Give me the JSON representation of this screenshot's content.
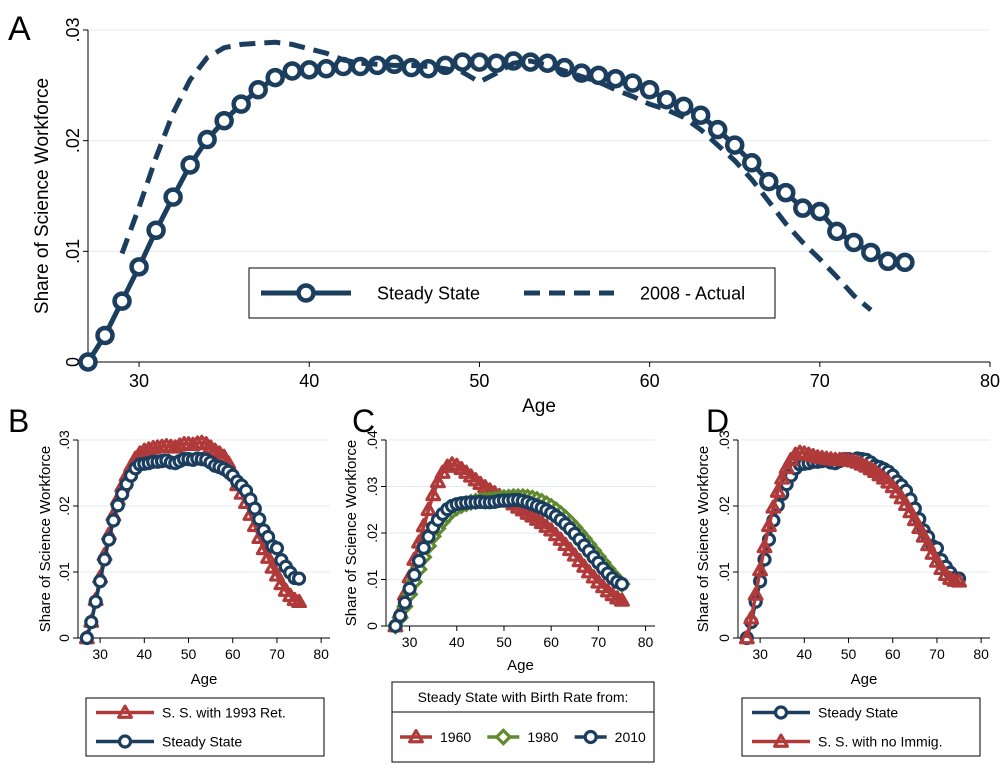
{
  "chart_data": [
    {
      "panel_label": "A",
      "type": "line",
      "xlabel": "Age",
      "ylabel": "Share of Science Workforce",
      "xlim": [
        27,
        80
      ],
      "ylim": [
        0,
        0.03
      ],
      "xticks": [
        "30",
        "40",
        "50",
        "60",
        "70",
        "80"
      ],
      "yticks": [
        "0",
        ".01",
        ".02",
        ".03"
      ],
      "grid": true,
      "legend": "inside-bottom-center",
      "x": [
        27,
        28,
        29,
        30,
        31,
        32,
        33,
        34,
        35,
        36,
        37,
        38,
        39,
        40,
        41,
        42,
        43,
        44,
        45,
        46,
        47,
        48,
        49,
        50,
        51,
        52,
        53,
        54,
        55,
        56,
        57,
        58,
        59,
        60,
        61,
        62,
        63,
        64,
        65,
        66,
        67,
        68,
        69,
        70,
        71,
        72,
        73,
        74,
        75
      ],
      "series": [
        {
          "name": "Steady State",
          "style": "line-circles",
          "color": "#1b3e5e",
          "values": [
            0.0,
            0.0024,
            0.0055,
            0.0086,
            0.0119,
            0.0149,
            0.0178,
            0.0201,
            0.0218,
            0.0233,
            0.0246,
            0.0257,
            0.0263,
            0.0264,
            0.0265,
            0.0267,
            0.0267,
            0.0268,
            0.0269,
            0.0266,
            0.0265,
            0.0268,
            0.0271,
            0.0271,
            0.027,
            0.0272,
            0.0271,
            0.027,
            0.0266,
            0.0261,
            0.0259,
            0.0256,
            0.0252,
            0.0246,
            0.0237,
            0.0231,
            0.0223,
            0.021,
            0.0196,
            0.018,
            0.0163,
            0.0153,
            0.0139,
            0.0136,
            0.0118,
            0.0108,
            0.0099,
            0.0091,
            0.009
          ]
        },
        {
          "name": "2008 - Actual",
          "style": "dashed",
          "color": "#1b3e5e",
          "x": [
            29,
            30,
            31,
            32,
            33,
            34,
            35,
            36,
            37,
            38,
            39,
            40,
            41,
            42,
            43,
            44,
            45,
            46,
            47,
            48,
            49,
            50,
            51,
            52,
            53,
            54,
            55,
            56,
            57,
            58,
            59,
            60,
            61,
            62,
            63,
            64,
            65,
            66,
            67,
            68,
            69,
            70,
            71,
            72,
            73
          ],
          "values": [
            0.0098,
            0.014,
            0.0185,
            0.0225,
            0.0255,
            0.0275,
            0.0284,
            0.0287,
            0.0288,
            0.0289,
            0.0287,
            0.0283,
            0.0279,
            0.0273,
            0.027,
            0.0269,
            0.0268,
            0.0268,
            0.0267,
            0.0265,
            0.0262,
            0.0253,
            0.0261,
            0.027,
            0.0272,
            0.0268,
            0.0263,
            0.0258,
            0.0253,
            0.0246,
            0.024,
            0.0233,
            0.0228,
            0.0221,
            0.021,
            0.0196,
            0.0182,
            0.0165,
            0.0145,
            0.0125,
            0.0108,
            0.0093,
            0.0077,
            0.006,
            0.0047
          ]
        }
      ]
    },
    {
      "panel_label": "B",
      "type": "line",
      "xlabel": "Age",
      "ylabel": "Share of Science Workforce",
      "xlim": [
        25,
        82
      ],
      "ylim": [
        0,
        0.03
      ],
      "xticks": [
        "30",
        "40",
        "50",
        "60",
        "70",
        "80"
      ],
      "yticks": [
        "0",
        ".01",
        ".02",
        ".03"
      ],
      "grid": true,
      "legend": "bottom",
      "x": [
        27,
        28,
        29,
        30,
        31,
        32,
        33,
        34,
        35,
        36,
        37,
        38,
        39,
        40,
        41,
        42,
        43,
        44,
        45,
        46,
        47,
        48,
        49,
        50,
        51,
        52,
        53,
        54,
        55,
        56,
        57,
        58,
        59,
        60,
        61,
        62,
        63,
        64,
        65,
        66,
        67,
        68,
        69,
        70,
        71,
        72,
        73,
        74,
        75
      ],
      "series": [
        {
          "name": "S. S. with 1993 Ret.",
          "style": "line-triangles",
          "color": "#b03a3a",
          "values": [
            0.0,
            0.0025,
            0.0058,
            0.0092,
            0.0126,
            0.0157,
            0.0186,
            0.021,
            0.023,
            0.0246,
            0.026,
            0.0272,
            0.028,
            0.0284,
            0.0286,
            0.0288,
            0.0289,
            0.029,
            0.0291,
            0.029,
            0.0289,
            0.0292,
            0.0294,
            0.0294,
            0.0293,
            0.0295,
            0.0296,
            0.0294,
            0.0289,
            0.0284,
            0.028,
            0.0275,
            0.0265,
            0.025,
            0.0232,
            0.0219,
            0.0205,
            0.0187,
            0.017,
            0.0152,
            0.0135,
            0.0122,
            0.0107,
            0.0095,
            0.0082,
            0.0072,
            0.0064,
            0.0058,
            0.0055
          ]
        },
        {
          "name": "Steady State",
          "style": "line-circles",
          "color": "#1b3e5e",
          "values": [
            0.0,
            0.0024,
            0.0055,
            0.0086,
            0.0119,
            0.0149,
            0.0178,
            0.0201,
            0.0218,
            0.0233,
            0.0246,
            0.0257,
            0.0263,
            0.0264,
            0.0265,
            0.0267,
            0.0267,
            0.0268,
            0.0269,
            0.0266,
            0.0265,
            0.0268,
            0.0271,
            0.0271,
            0.027,
            0.0272,
            0.0271,
            0.027,
            0.0266,
            0.0261,
            0.0259,
            0.0256,
            0.0252,
            0.0246,
            0.0237,
            0.0231,
            0.0223,
            0.021,
            0.0196,
            0.018,
            0.0163,
            0.0153,
            0.0139,
            0.0136,
            0.0118,
            0.0108,
            0.0099,
            0.0091,
            0.009
          ]
        }
      ]
    },
    {
      "panel_label": "C",
      "type": "line",
      "xlabel": "Age",
      "ylabel": "Share of Science Workforce",
      "xlim": [
        25,
        82
      ],
      "ylim": [
        0,
        0.04
      ],
      "xticks": [
        "30",
        "40",
        "50",
        "60",
        "70",
        "80"
      ],
      "yticks": [
        "0",
        ".01",
        ".02",
        ".03",
        ".04"
      ],
      "grid": true,
      "legend": "bottom",
      "legend_title": "Steady State with Birth Rate from:",
      "x": [
        27,
        28,
        29,
        30,
        31,
        32,
        33,
        34,
        35,
        36,
        37,
        38,
        39,
        40,
        41,
        42,
        43,
        44,
        45,
        46,
        47,
        48,
        49,
        50,
        51,
        52,
        53,
        54,
        55,
        56,
        57,
        58,
        59,
        60,
        61,
        62,
        63,
        64,
        65,
        66,
        67,
        68,
        69,
        70,
        71,
        72,
        73,
        74,
        75
      ],
      "series": [
        {
          "name": "1960",
          "style": "line-triangles",
          "color": "#b03a3a",
          "values": [
            0.0,
            0.003,
            0.0068,
            0.0105,
            0.0143,
            0.018,
            0.0215,
            0.025,
            0.0282,
            0.031,
            0.033,
            0.0343,
            0.0348,
            0.0345,
            0.0338,
            0.033,
            0.0322,
            0.0314,
            0.0306,
            0.0299,
            0.0292,
            0.0286,
            0.028,
            0.0274,
            0.0268,
            0.0262,
            0.0255,
            0.0249,
            0.0242,
            0.0236,
            0.0229,
            0.0222,
            0.0214,
            0.0206,
            0.0196,
            0.0186,
            0.0175,
            0.0164,
            0.0152,
            0.014,
            0.0128,
            0.0116,
            0.0105,
            0.0094,
            0.0084,
            0.0075,
            0.0067,
            0.006,
            0.0055
          ]
        },
        {
          "name": "1980",
          "style": "line-diamonds",
          "color": "#5f8a2e",
          "values": [
            0.0,
            0.0018,
            0.0042,
            0.0068,
            0.0095,
            0.0122,
            0.0148,
            0.0172,
            0.0193,
            0.021,
            0.0225,
            0.0237,
            0.0247,
            0.0254,
            0.0259,
            0.0263,
            0.0266,
            0.0268,
            0.027,
            0.0271,
            0.0272,
            0.0273,
            0.0275,
            0.0276,
            0.0277,
            0.0278,
            0.0278,
            0.0278,
            0.0277,
            0.0275,
            0.0272,
            0.0268,
            0.0263,
            0.0257,
            0.025,
            0.0242,
            0.0233,
            0.0223,
            0.0212,
            0.02,
            0.0188,
            0.0175,
            0.0162,
            0.0149,
            0.0136,
            0.0123,
            0.0111,
            0.01,
            0.009
          ]
        },
        {
          "name": "2010",
          "style": "line-circles",
          "color": "#1b3e5e",
          "values": [
            0.0,
            0.0022,
            0.005,
            0.008,
            0.011,
            0.014,
            0.0168,
            0.0192,
            0.0212,
            0.0228,
            0.0241,
            0.0251,
            0.0258,
            0.0262,
            0.0264,
            0.0265,
            0.0266,
            0.0266,
            0.0267,
            0.0266,
            0.0266,
            0.0267,
            0.0269,
            0.027,
            0.027,
            0.0271,
            0.0271,
            0.0269,
            0.0266,
            0.0262,
            0.0258,
            0.0254,
            0.0249,
            0.0243,
            0.0236,
            0.0228,
            0.0219,
            0.0209,
            0.0198,
            0.0186,
            0.0173,
            0.0161,
            0.0148,
            0.0136,
            0.0124,
            0.0113,
            0.0103,
            0.0095,
            0.009
          ]
        }
      ]
    },
    {
      "panel_label": "D",
      "type": "line",
      "xlabel": "Age",
      "ylabel": "Share of Science Workforce",
      "xlim": [
        25,
        82
      ],
      "ylim": [
        0,
        0.03
      ],
      "xticks": [
        "30",
        "40",
        "50",
        "60",
        "70",
        "80"
      ],
      "yticks": [
        "0",
        ".01",
        ".02",
        ".03"
      ],
      "grid": true,
      "legend": "bottom",
      "x": [
        27,
        28,
        29,
        30,
        31,
        32,
        33,
        34,
        35,
        36,
        37,
        38,
        39,
        40,
        41,
        42,
        43,
        44,
        45,
        46,
        47,
        48,
        49,
        50,
        51,
        52,
        53,
        54,
        55,
        56,
        57,
        58,
        59,
        60,
        61,
        62,
        63,
        64,
        65,
        66,
        67,
        68,
        69,
        70,
        71,
        72,
        73,
        74,
        75
      ],
      "series": [
        {
          "name": "Steady State",
          "style": "line-circles",
          "color": "#1b3e5e",
          "values": [
            0.0,
            0.0024,
            0.0055,
            0.0086,
            0.0119,
            0.0149,
            0.0178,
            0.0201,
            0.0218,
            0.0233,
            0.0246,
            0.0257,
            0.0263,
            0.0264,
            0.0265,
            0.0267,
            0.0267,
            0.0268,
            0.0269,
            0.0266,
            0.0265,
            0.0268,
            0.0271,
            0.0271,
            0.027,
            0.0272,
            0.0271,
            0.027,
            0.0266,
            0.0261,
            0.0259,
            0.0256,
            0.0252,
            0.0246,
            0.0237,
            0.0231,
            0.0223,
            0.021,
            0.0196,
            0.018,
            0.0163,
            0.0153,
            0.0139,
            0.0136,
            0.0118,
            0.0108,
            0.0099,
            0.0091,
            0.009
          ]
        },
        {
          "name": "S. S. with no Immig.",
          "style": "line-triangles",
          "color": "#b03a3a",
          "values": [
            0.0,
            0.003,
            0.0066,
            0.0103,
            0.0138,
            0.017,
            0.0198,
            0.0222,
            0.0242,
            0.0258,
            0.027,
            0.0278,
            0.0281,
            0.028,
            0.0278,
            0.0276,
            0.0274,
            0.0273,
            0.0272,
            0.0271,
            0.027,
            0.027,
            0.027,
            0.0269,
            0.0268,
            0.0266,
            0.0263,
            0.026,
            0.0256,
            0.0252,
            0.0247,
            0.0242,
            0.0236,
            0.0229,
            0.0221,
            0.0212,
            0.0202,
            0.0191,
            0.0179,
            0.0167,
            0.0154,
            0.0141,
            0.0128,
            0.0116,
            0.0105,
            0.0096,
            0.009,
            0.0087,
            0.0086
          ]
        }
      ]
    }
  ]
}
